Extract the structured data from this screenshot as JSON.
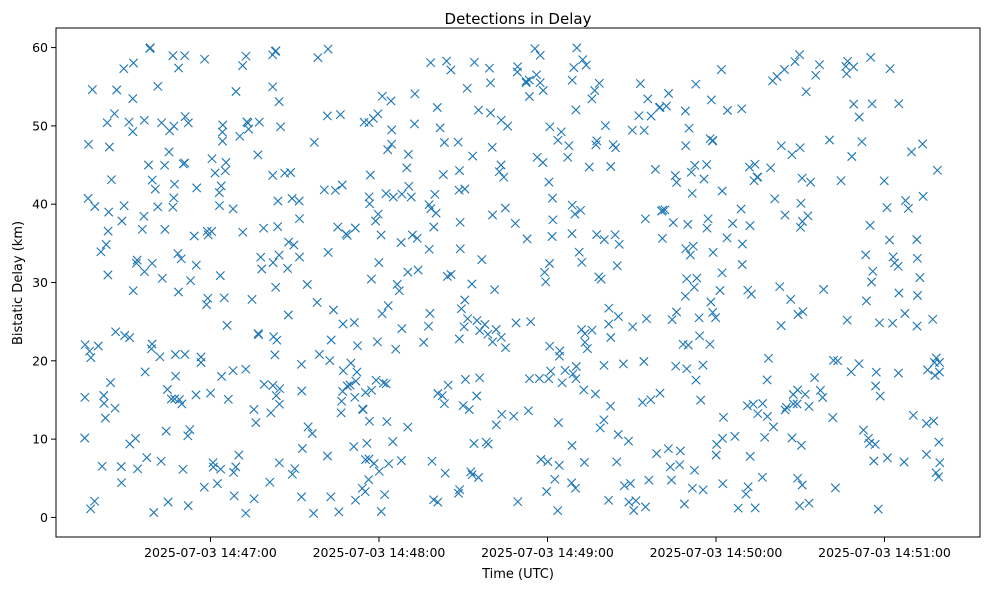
{
  "chart_data": {
    "type": "scatter",
    "title": "Detections in Delay",
    "xlabel": "Time (UTC)",
    "ylabel": "Bistatic Delay (km)",
    "x_ticks": [
      "2025-07-03 14:47:00",
      "2025-07-03 14:48:00",
      "2025-07-03 14:49:00",
      "2025-07-03 14:50:00",
      "2025-07-03 14:51:00"
    ],
    "y_ticks": [
      "0",
      "10",
      "20",
      "30",
      "40",
      "50",
      "60"
    ],
    "xlim": [
      "2025-07-03 14:46:05",
      "2025-07-03 14:51:34"
    ],
    "ylim": [
      -2.5,
      62.5
    ],
    "marker": "x",
    "color": "#1f77b4",
    "grid": false,
    "point_count": 720,
    "time_range": [
      "2025-07-03 14:46:15",
      "2025-07-03 14:51:20"
    ],
    "delay_range": [
      0.5,
      60
    ]
  }
}
